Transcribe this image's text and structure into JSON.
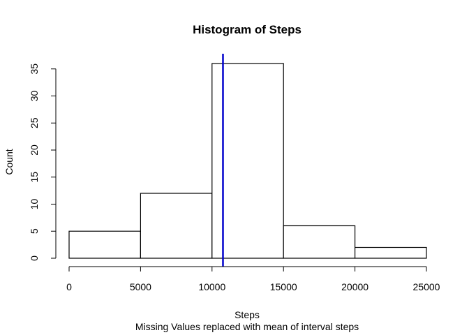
{
  "chart_data": {
    "type": "bar",
    "title": "Histogram of Steps",
    "xlabel": "Steps",
    "subtitle": "Missing Values replaced with mean of interval steps",
    "ylabel": "Count",
    "bins": [
      {
        "from": 0,
        "to": 5000,
        "count": 5
      },
      {
        "from": 5000,
        "to": 10000,
        "count": 12
      },
      {
        "from": 10000,
        "to": 15000,
        "count": 36
      },
      {
        "from": 15000,
        "to": 20000,
        "count": 6
      },
      {
        "from": 20000,
        "to": 25000,
        "count": 2
      }
    ],
    "xlim": [
      0,
      25000
    ],
    "ylim": [
      0,
      37.5
    ],
    "x_ticks": [
      "0",
      "5000",
      "10000",
      "15000",
      "20000",
      "25000"
    ],
    "y_ticks": [
      "0",
      "5",
      "10",
      "15",
      "20",
      "25",
      "30",
      "35"
    ],
    "mean_line": {
      "x": 10766,
      "color": "#0000cc"
    },
    "bar_fill": "#ffffff",
    "bar_stroke": "#000000",
    "grid": false,
    "legend": "none"
  }
}
